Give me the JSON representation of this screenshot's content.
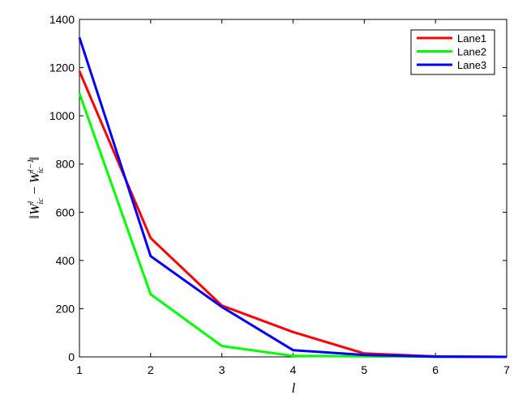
{
  "chart_data": {
    "type": "line",
    "title": "",
    "xlabel": "l",
    "ylabel": "||W^l_ic − W^(l−1)_ic||",
    "ylabel_parts": {
      "open": "‖",
      "W1": "W",
      "sup1": "l",
      "sub1": "ic",
      "minus": " − ",
      "W2": "W",
      "sup2": "l−1",
      "sub2": "ic",
      "close": "‖"
    },
    "xlim": [
      1,
      7
    ],
    "ylim": [
      0,
      1400
    ],
    "xticks": [
      "1",
      "2",
      "3",
      "4",
      "5",
      "6",
      "7"
    ],
    "yticks": [
      "0",
      "200",
      "400",
      "600",
      "800",
      "1000",
      "1200",
      "1400"
    ],
    "x": [
      1,
      2,
      3,
      4,
      5,
      6,
      7
    ],
    "grid": false,
    "legend_position": "top-right",
    "series": [
      {
        "name": "Lane1",
        "color": "#ff0000",
        "values": [
          1185,
          493,
          213,
          103,
          14,
          2,
          0
        ]
      },
      {
        "name": "Lane2",
        "color": "#00ff00",
        "values": [
          1093,
          260,
          45,
          4,
          2,
          1,
          0
        ]
      },
      {
        "name": "Lane3",
        "color": "#0000ff",
        "values": [
          1325,
          418,
          207,
          28,
          8,
          1,
          0
        ]
      }
    ]
  }
}
